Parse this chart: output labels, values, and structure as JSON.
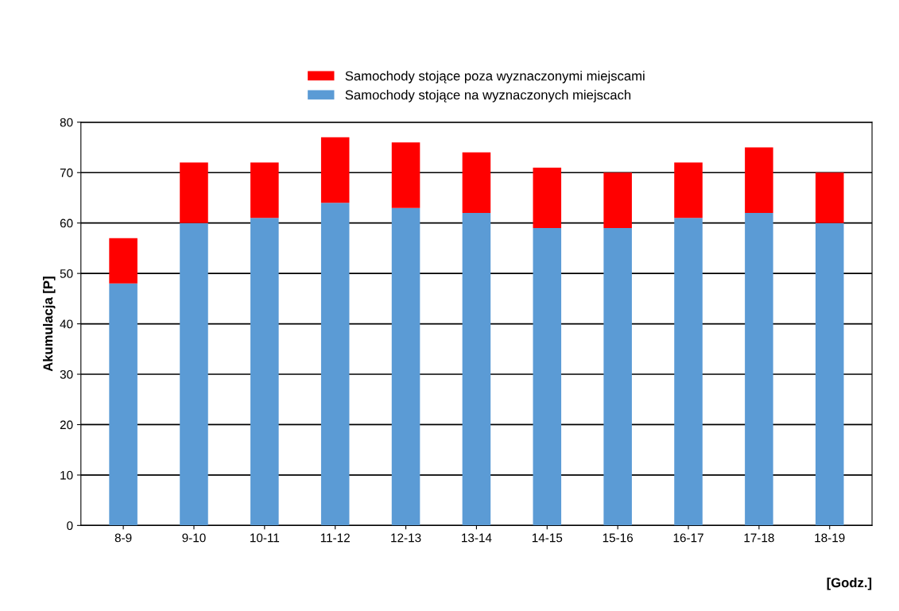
{
  "chart_data": {
    "type": "bar",
    "stacked": true,
    "categories": [
      "8-9",
      "9-10",
      "10-11",
      "11-12",
      "12-13",
      "13-14",
      "14-15",
      "15-16",
      "16-17",
      "17-18",
      "18-19"
    ],
    "series": [
      {
        "name": "Samochody stojące na wyznaczonych miejscach",
        "color": "#5b9bd5",
        "values": [
          48,
          60,
          61,
          64,
          63,
          62,
          59,
          59,
          61,
          62,
          60
        ]
      },
      {
        "name": "Samochody stojące poza wyznaczonymi miejscami",
        "color": "#ff0000",
        "values": [
          9,
          12,
          11,
          13,
          13,
          12,
          12,
          11,
          11,
          13,
          10
        ]
      }
    ],
    "xlabel": "[Godz.]",
    "ylabel": "Akumulacja [P]",
    "ylim": [
      0,
      80
    ],
    "yticks": [
      0,
      10,
      20,
      30,
      40,
      50,
      60,
      70,
      80
    ],
    "grid": "y",
    "legend": "top"
  }
}
